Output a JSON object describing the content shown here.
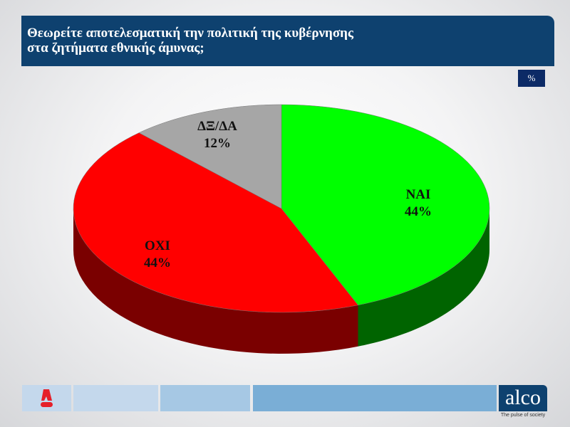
{
  "header": {
    "title_line1": "Θεωρείτε αποτελεσματική την πολιτική της κυβέρνησης",
    "title_line2": "στα ζητήματα εθνικής άμυνας;"
  },
  "unit_badge": "%",
  "chart_data": {
    "type": "pie",
    "style": "3d",
    "slices": [
      {
        "label": "ΝΑΙ",
        "value": 44,
        "display": "44%",
        "color": "#00ff00",
        "side_color": "#006400"
      },
      {
        "label": "ΟΧΙ",
        "value": 44,
        "display": "44%",
        "color": "#ff0000",
        "side_color": "#7a0000"
      },
      {
        "label": "ΔΞ/ΔΑ",
        "value": 12,
        "display": "12%",
        "color": "#a6a6a6",
        "side_color": "#6e6e6e"
      }
    ]
  },
  "footer": {
    "brand": "alco",
    "tagline": "The pulse of society",
    "channel_logo": "Alpha News",
    "box_colors": [
      "#c4d8ec",
      "#a6c8e4",
      "#7aaed6"
    ]
  }
}
